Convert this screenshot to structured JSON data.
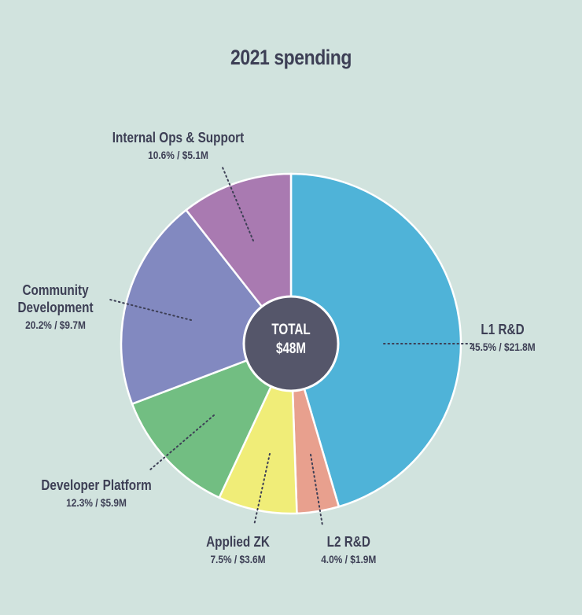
{
  "chart_data": {
    "type": "pie",
    "title": "2021 spending",
    "center_label": [
      "TOTAL",
      "$48M"
    ],
    "slices": [
      {
        "name": "L1 R&D",
        "percent": 45.5,
        "amount": "$21.8M",
        "color": "#4fb3d8"
      },
      {
        "name": "L2 R&D",
        "percent": 4.0,
        "amount": "$1.9M",
        "color": "#e8a08e"
      },
      {
        "name": "Applied ZK",
        "percent": 7.5,
        "amount": "$3.6M",
        "color": "#f0ed78"
      },
      {
        "name": "Developer Platform",
        "percent": 12.3,
        "amount": "$5.9M",
        "color": "#72be82"
      },
      {
        "name": "Community Development",
        "percent": 20.2,
        "amount": "$9.7M",
        "color": "#8289c0"
      },
      {
        "name": "Internal Ops & Support",
        "percent": 10.6,
        "amount": "$5.1M",
        "color": "#a97ab1"
      }
    ],
    "value_labels": [
      "45.5% / $21.8M",
      "4.0% / $1.9M",
      "7.5% / $3.6M",
      "12.3% / $5.9M",
      "20.2% / $9.7M",
      "10.6% / $5.1M"
    ],
    "name_lines": [
      [
        "L1 R&D"
      ],
      [
        "L2 R&D"
      ],
      [
        "Applied ZK"
      ],
      [
        "Developer Platform"
      ],
      [
        "Community",
        "Development"
      ],
      [
        "Internal Ops & Support"
      ]
    ]
  },
  "colors": {
    "background": "#d1e3de",
    "text": "#3d3f55",
    "center": "#55566a"
  }
}
